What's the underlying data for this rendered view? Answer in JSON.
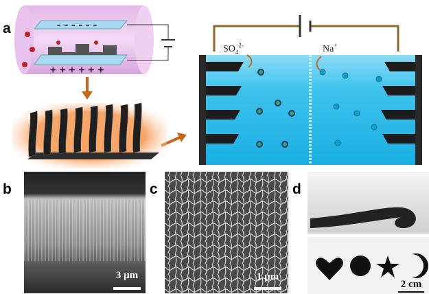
{
  "panels": [
    {
      "label": "a"
    },
    {
      "label": "b"
    },
    {
      "label": "c"
    },
    {
      "label": "d"
    }
  ],
  "electrodes": {
    "negative": "- - - - - -",
    "positive": "+ + + + + +"
  },
  "ions": {
    "anion": "SO",
    "anion_subscript": "4",
    "anion_charge": "2-",
    "cation": "Na",
    "cation_charge": "+"
  },
  "scale_bars": {
    "b": "3 μm",
    "c": "1 μm",
    "d": "2 cm"
  }
}
